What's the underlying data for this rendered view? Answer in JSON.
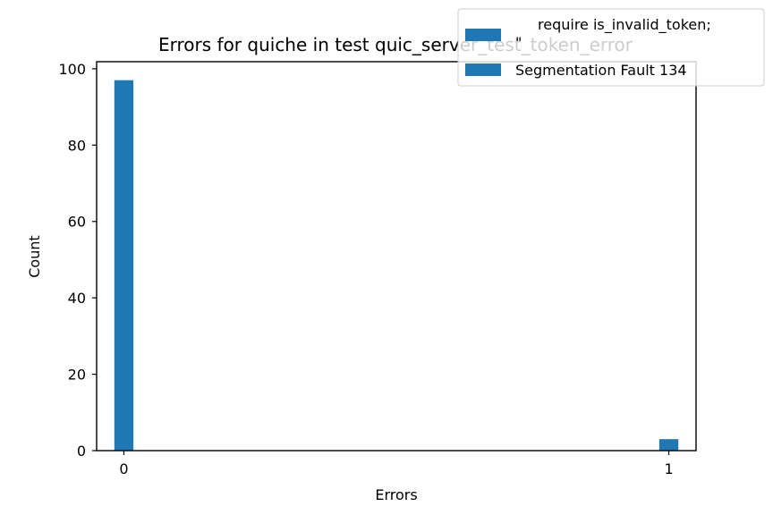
{
  "chart_data": {
    "type": "bar",
    "title": "Errors for quiche in test quic_server_test_token_error",
    "xlabel": "Errors",
    "ylabel": "Count",
    "xlim": [
      -0.05,
      1.05
    ],
    "ylim": [
      0,
      101.85
    ],
    "xticks": [
      0,
      1
    ],
    "xtick_labels": [
      "0",
      "1"
    ],
    "yticks": [
      0,
      20,
      40,
      60,
      80,
      100
    ],
    "ytick_labels": [
      "0",
      "20",
      "40",
      "60",
      "80",
      "100"
    ],
    "bar_width": 0.035,
    "grid": false,
    "legend_position": "top-right",
    "colors": {
      "bar": "#1f77b4"
    },
    "series": [
      {
        "name": "require is_invalid_token;\n\"",
        "x": [
          0
        ],
        "values": [
          97
        ]
      },
      {
        "name": "Segmentation Fault 134",
        "x": [
          1
        ],
        "values": [
          3
        ]
      }
    ]
  }
}
